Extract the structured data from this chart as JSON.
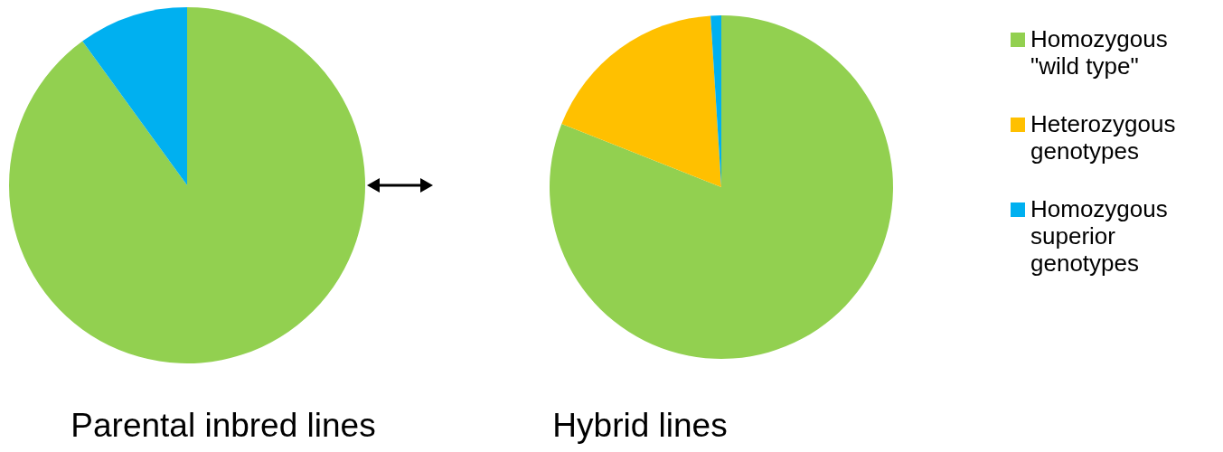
{
  "chart_data": [
    {
      "type": "pie",
      "title": "Parental inbred lines",
      "categories": [
        null,
        null
      ],
      "values": [
        90,
        10
      ],
      "colors": [
        "#92d050",
        "#00b0f0"
      ]
    },
    {
      "type": "pie",
      "title": "Hybrid lines",
      "categories": [
        "Homozygous \"wild type\"",
        "Heterozygous genotypes",
        "Homozygous superior genotypes"
      ],
      "values": [
        81,
        18,
        1
      ],
      "colors": [
        "#92d050",
        "#ffc000",
        "#00b0f0"
      ],
      "legend": "right"
    }
  ]
}
